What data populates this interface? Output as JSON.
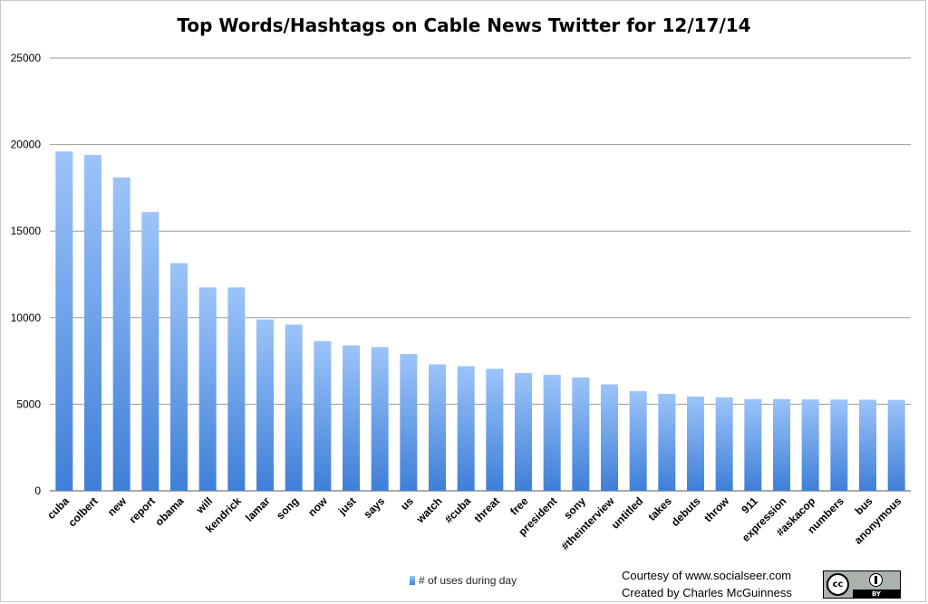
{
  "chart_data": {
    "type": "bar",
    "title": "Top Words/Hashtags on Cable News Twitter for 12/17/14",
    "xlabel": "",
    "ylabel": "",
    "ylim": [
      0,
      25000
    ],
    "yticks": [
      "0",
      "5000",
      "10000",
      "15000",
      "20000",
      "25000"
    ],
    "grid": true,
    "legend_position": "bottom",
    "categories": [
      "cuba",
      "colbert",
      "new",
      "report",
      "obama",
      "will",
      "kendrick",
      "lamar",
      "song",
      "now",
      "just",
      "says",
      "us",
      "watch",
      "#cuba",
      "threat",
      "free",
      "president",
      "sony",
      "#theinterview",
      "untitled",
      "takes",
      "debuts",
      "throw",
      "911",
      "expression",
      "#askacop",
      "numbers",
      "bus",
      "anonymous"
    ],
    "series": [
      {
        "name": "# of uses during day",
        "values": [
          19600,
          19400,
          18100,
          16100,
          13150,
          11750,
          11750,
          9900,
          9600,
          8650,
          8400,
          8300,
          7900,
          7300,
          7200,
          7050,
          6800,
          6700,
          6550,
          6150,
          5750,
          5600,
          5450,
          5400,
          5300,
          5300,
          5280,
          5270,
          5260,
          5250
        ]
      }
    ],
    "colors": {
      "bar_top": "#9cc4fa",
      "bar_bottom": "#3f7fd7",
      "grid": "#9a9a9a"
    }
  },
  "credits": {
    "line1": "Courtesy of www.socialseer.com",
    "line2": "Created by Charles McGuinness"
  },
  "license_badge": {
    "cc": "cc",
    "by": "BY",
    "icons": [
      "creative-commons-icon",
      "attribution-icon"
    ]
  }
}
